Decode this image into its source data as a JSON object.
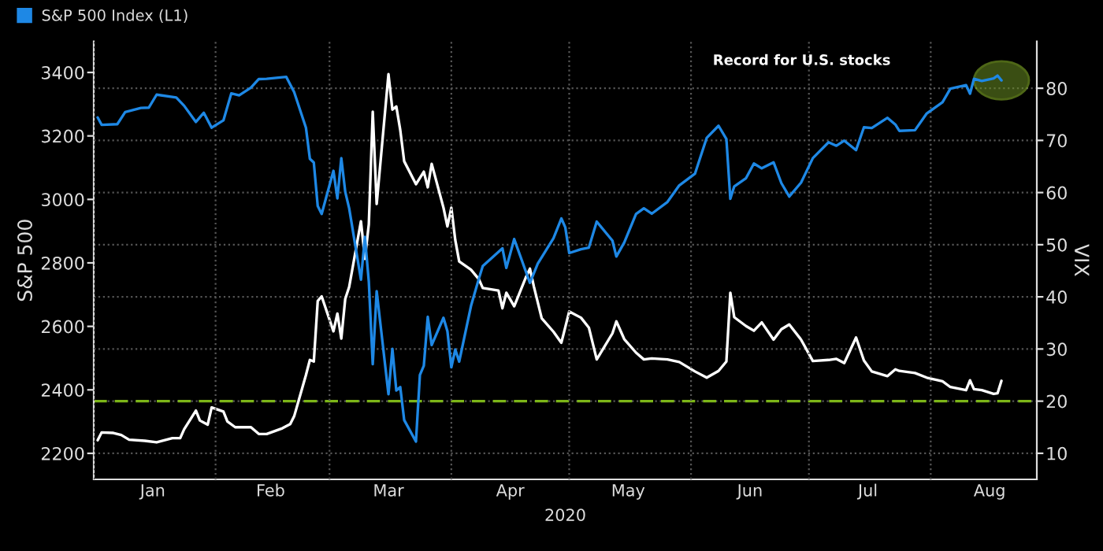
{
  "chart_data": {
    "type": "line",
    "xlabel": "2020",
    "ylabel": "S&P 500",
    "y2label": "VIX",
    "xlim": [
      "2020-01-01",
      "2020-08-28"
    ],
    "xticks": [
      {
        "value": "2020-01-01",
        "label": null
      },
      {
        "value": "2020-02-01",
        "label": null
      },
      {
        "value": "2020-03-01",
        "label": null
      },
      {
        "value": "2020-04-01",
        "label": null
      },
      {
        "value": "2020-05-01",
        "label": null
      },
      {
        "value": "2020-06-01",
        "label": null
      },
      {
        "value": "2020-07-01",
        "label": null
      },
      {
        "value": "2020-08-01",
        "label": null
      },
      {
        "value": "2020-01-16",
        "label": "Jan"
      },
      {
        "value": "2020-02-15",
        "label": "Feb"
      },
      {
        "value": "2020-03-16",
        "label": "Mar"
      },
      {
        "value": "2020-04-16",
        "label": "Apr"
      },
      {
        "value": "2020-05-16",
        "label": "May"
      },
      {
        "value": "2020-06-16",
        "label": "Jun"
      },
      {
        "value": "2020-07-16",
        "label": "Jul"
      },
      {
        "value": "2020-08-16",
        "label": "Aug"
      }
    ],
    "ylim": [
      2118,
      3498
    ],
    "yticks": [
      2200,
      2400,
      2600,
      2800,
      3000,
      3200,
      3400
    ],
    "y2lim": [
      5,
      89
    ],
    "y2ticks": [
      10,
      20,
      30,
      40,
      50,
      60,
      70,
      80
    ],
    "grid": true,
    "legend": "top left",
    "line_style": "solid",
    "ref_lines": [
      {
        "axis": "y2",
        "value": 20,
        "label": null,
        "color": "#7cb518",
        "line_style": "dashed"
      }
    ],
    "annotations": [
      "Record for U.S. stocks"
    ],
    "series": [
      {
        "color": "#ffffff",
        "axis": "y2",
        "x": [
          "2020-01-02",
          "2020-01-03",
          "2020-01-06",
          "2020-01-08",
          "2020-01-10",
          "2020-01-14",
          "2020-01-17",
          "2020-01-21",
          "2020-01-23",
          "2020-01-24",
          "2020-01-27",
          "2020-01-28",
          "2020-01-30",
          "2020-01-31",
          "2020-02-03",
          "2020-02-04",
          "2020-02-06",
          "2020-02-10",
          "2020-02-12",
          "2020-02-14",
          "2020-02-18",
          "2020-02-20",
          "2020-02-21",
          "2020-02-24",
          "2020-02-25",
          "2020-02-26",
          "2020-02-27",
          "2020-02-28",
          "2020-03-02",
          "2020-03-03",
          "2020-03-04",
          "2020-03-05",
          "2020-03-06",
          "2020-03-09",
          "2020-03-10",
          "2020-03-11",
          "2020-03-12",
          "2020-03-13",
          "2020-03-16",
          "2020-03-17",
          "2020-03-18",
          "2020-03-19",
          "2020-03-20",
          "2020-03-23",
          "2020-03-25",
          "2020-03-26",
          "2020-03-27",
          "2020-03-30",
          "2020-03-31",
          "2020-04-01",
          "2020-04-02",
          "2020-04-03",
          "2020-04-06",
          "2020-04-08",
          "2020-04-09",
          "2020-04-13",
          "2020-04-14",
          "2020-04-15",
          "2020-04-17",
          "2020-04-20",
          "2020-04-21",
          "2020-04-22",
          "2020-04-24",
          "2020-04-27",
          "2020-04-29",
          "2020-04-30",
          "2020-05-01",
          "2020-05-04",
          "2020-05-06",
          "2020-05-08",
          "2020-05-12",
          "2020-05-13",
          "2020-05-15",
          "2020-05-18",
          "2020-05-20",
          "2020-05-22",
          "2020-05-26",
          "2020-05-29",
          "2020-06-02",
          "2020-06-05",
          "2020-06-08",
          "2020-06-10",
          "2020-06-11",
          "2020-06-12",
          "2020-06-15",
          "2020-06-17",
          "2020-06-19",
          "2020-06-22",
          "2020-06-24",
          "2020-06-26",
          "2020-06-29",
          "2020-07-02",
          "2020-07-06",
          "2020-07-08",
          "2020-07-10",
          "2020-07-13",
          "2020-07-15",
          "2020-07-17",
          "2020-07-21",
          "2020-07-23",
          "2020-07-24",
          "2020-07-28",
          "2020-07-31",
          "2020-08-04",
          "2020-08-06",
          "2020-08-10",
          "2020-08-11",
          "2020-08-12",
          "2020-08-14",
          "2020-08-17",
          "2020-08-18",
          "2020-08-19"
        ],
        "values": [
          12.5,
          14.0,
          13.9,
          13.5,
          12.6,
          12.4,
          12.1,
          12.9,
          12.9,
          14.6,
          18.2,
          16.3,
          15.5,
          18.8,
          18.0,
          16.1,
          15.0,
          15.0,
          13.7,
          13.7,
          14.8,
          15.6,
          17.1,
          25.0,
          27.9,
          27.6,
          39.2,
          40.1,
          33.4,
          36.8,
          32.0,
          39.6,
          41.9,
          54.5,
          47.3,
          53.9,
          75.5,
          57.8,
          82.7,
          75.9,
          76.5,
          72.0,
          66.0,
          61.6,
          64.0,
          61.0,
          65.5,
          57.1,
          53.5,
          57.1,
          50.9,
          46.8,
          45.2,
          43.4,
          41.7,
          41.2,
          37.8,
          40.8,
          38.2,
          43.8,
          45.4,
          42.0,
          35.9,
          33.3,
          31.2,
          34.2,
          37.2,
          36.0,
          34.1,
          28.0,
          33.0,
          35.3,
          31.9,
          29.3,
          28.0,
          28.2,
          28.0,
          27.5,
          25.7,
          24.5,
          25.8,
          27.6,
          40.8,
          36.1,
          34.4,
          33.5,
          35.1,
          31.8,
          33.8,
          34.7,
          31.8,
          27.7,
          27.9,
          28.1,
          27.3,
          32.2,
          27.8,
          25.7,
          24.8,
          26.1,
          25.8,
          25.4,
          24.5,
          23.8,
          22.7,
          22.1,
          24.0,
          22.3,
          22.1,
          21.4,
          21.5,
          23.9
        ]
      },
      {
        "name": "S&P 500 Index (L1)",
        "color": "#1e88e5",
        "x": [
          "2020-01-02",
          "2020-01-03",
          "2020-01-07",
          "2020-01-09",
          "2020-01-13",
          "2020-01-15",
          "2020-01-17",
          "2020-01-22",
          "2020-01-24",
          "2020-01-27",
          "2020-01-29",
          "2020-01-31",
          "2020-02-03",
          "2020-02-05",
          "2020-02-07",
          "2020-02-10",
          "2020-02-12",
          "2020-02-14",
          "2020-02-19",
          "2020-02-21",
          "2020-02-24",
          "2020-02-25",
          "2020-02-26",
          "2020-02-27",
          "2020-02-28",
          "2020-03-02",
          "2020-03-03",
          "2020-03-04",
          "2020-03-05",
          "2020-03-06",
          "2020-03-09",
          "2020-03-10",
          "2020-03-11",
          "2020-03-12",
          "2020-03-13",
          "2020-03-16",
          "2020-03-17",
          "2020-03-18",
          "2020-03-19",
          "2020-03-20",
          "2020-03-23",
          "2020-03-24",
          "2020-03-25",
          "2020-03-26",
          "2020-03-27",
          "2020-03-30",
          "2020-03-31",
          "2020-04-01",
          "2020-04-02",
          "2020-04-03",
          "2020-04-06",
          "2020-04-08",
          "2020-04-09",
          "2020-04-14",
          "2020-04-15",
          "2020-04-17",
          "2020-04-21",
          "2020-04-23",
          "2020-04-27",
          "2020-04-29",
          "2020-04-30",
          "2020-05-01",
          "2020-05-04",
          "2020-05-06",
          "2020-05-08",
          "2020-05-12",
          "2020-05-13",
          "2020-05-15",
          "2020-05-18",
          "2020-05-20",
          "2020-05-22",
          "2020-05-26",
          "2020-05-29",
          "2020-06-02",
          "2020-06-05",
          "2020-06-08",
          "2020-06-10",
          "2020-06-11",
          "2020-06-12",
          "2020-06-15",
          "2020-06-17",
          "2020-06-19",
          "2020-06-22",
          "2020-06-24",
          "2020-06-26",
          "2020-06-29",
          "2020-07-02",
          "2020-07-06",
          "2020-07-08",
          "2020-07-10",
          "2020-07-13",
          "2020-07-15",
          "2020-07-17",
          "2020-07-21",
          "2020-07-23",
          "2020-07-24",
          "2020-07-28",
          "2020-07-31",
          "2020-08-04",
          "2020-08-06",
          "2020-08-10",
          "2020-08-11",
          "2020-08-12",
          "2020-08-14",
          "2020-08-17",
          "2020-08-18",
          "2020-08-19"
        ],
        "values": [
          3258,
          3235,
          3237,
          3275,
          3288,
          3289,
          3330,
          3321,
          3295,
          3244,
          3273,
          3226,
          3249,
          3334,
          3328,
          3352,
          3379,
          3380,
          3386,
          3338,
          3226,
          3128,
          3116,
          2979,
          2954,
          3090,
          3003,
          3130,
          3024,
          2972,
          2747,
          2882,
          2741,
          2481,
          2711,
          2386,
          2529,
          2398,
          2409,
          2305,
          2237,
          2447,
          2476,
          2630,
          2541,
          2627,
          2585,
          2471,
          2527,
          2489,
          2664,
          2750,
          2790,
          2846,
          2784,
          2875,
          2737,
          2798,
          2878,
          2940,
          2912,
          2831,
          2843,
          2848,
          2930,
          2870,
          2820,
          2864,
          2954,
          2972,
          2955,
          2992,
          3044,
          3081,
          3194,
          3232,
          3190,
          3002,
          3041,
          3067,
          3113,
          3098,
          3117,
          3051,
          3009,
          3053,
          3130,
          3180,
          3169,
          3185,
          3155,
          3227,
          3225,
          3257,
          3236,
          3216,
          3218,
          3271,
          3306,
          3349,
          3360,
          3333,
          3380,
          3373,
          3381,
          3390,
          3375
        ]
      }
    ]
  }
}
